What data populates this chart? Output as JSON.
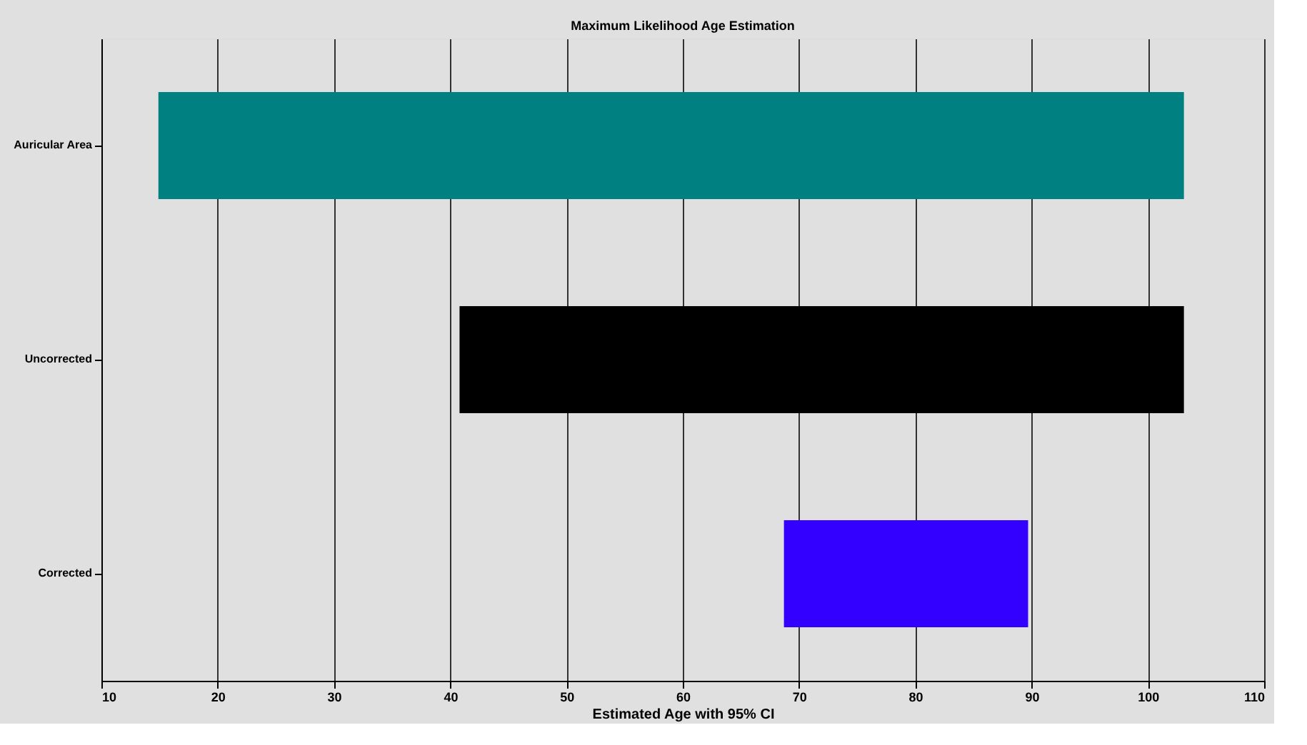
{
  "chart_data": {
    "type": "bar",
    "orientation": "horizontal",
    "title": "Maximum Likelihood Age Estimation",
    "xlabel": "Estimated Age with 95% CI",
    "categories": [
      "Auricular Area",
      "Uncorrected",
      "Corrected"
    ],
    "base": [
      14.9,
      40.8,
      68.7
    ],
    "values": [
      88.2,
      62.3,
      21.0
    ],
    "colors": [
      "#008080",
      "#000000",
      "#3300ff"
    ],
    "xlim": [
      10,
      110
    ],
    "xticks": [
      10,
      20,
      30,
      40,
      50,
      60,
      70,
      80,
      90,
      100,
      110
    ],
    "grid": "x",
    "legend": false
  }
}
